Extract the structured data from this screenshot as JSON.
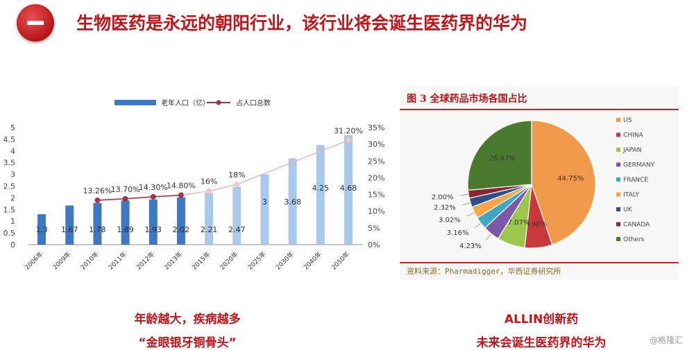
{
  "slide": {
    "title": "生物医药是永远的朝阳行业，该行业将会诞生医药界的华为",
    "badge_icon": "minus-icon",
    "accent": "#c0141b"
  },
  "left_caption": {
    "line1": "年龄越大，疾病越多",
    "line2": "“金眼银牙铜骨头”"
  },
  "right_caption": {
    "line1": "ALLIN创新药",
    "line2": "未来会诞生医药界的华为"
  },
  "right_panel": {
    "title": "图 3 全球药品市场各国占比",
    "source": "资料来源：Pharmadigger，华西证券研究所"
  },
  "watermark": "@格隆汇",
  "chart_data": [
    {
      "type": "bar",
      "legend": [
        "老年人口（亿）",
        "占人口总数"
      ],
      "categories": [
        "2006年",
        "2009年",
        "2010年",
        "2011年",
        "2012年",
        "2013年",
        "2015年",
        "2020年",
        "2025年",
        "2030年",
        "2040年",
        "2050年"
      ],
      "series": [
        {
          "name": "老年人口（亿）",
          "values": [
            1.3,
            1.67,
            1.78,
            1.89,
            1.93,
            2.02,
            2.21,
            2.47,
            3,
            3.68,
            4.25,
            4.68
          ],
          "labels": [
            "1.3",
            "1.67",
            "1.78",
            "1.89",
            "1.93",
            "2.02",
            "2.21",
            "2.47",
            "3",
            "3.68",
            "4.25",
            "4.68"
          ]
        },
        {
          "name": "占人口总数",
          "values": [
            null,
            null,
            13.26,
            13.7,
            14.3,
            14.8,
            16,
            18,
            null,
            null,
            null,
            31.2
          ],
          "labels": [
            "",
            "",
            "13.26%",
            "13.70%",
            "14.30%",
            "14.80%",
            "16%",
            "18%",
            "",
            "",
            "",
            "31.20%"
          ]
        }
      ],
      "y_ticks": [
        "0",
        "0.5",
        "1",
        "1.5",
        "2",
        "2.5",
        "3",
        "3.5",
        "4",
        "4.5",
        "5"
      ],
      "y2_ticks": [
        "0%",
        "5%",
        "10%",
        "15%",
        "20%",
        "25%",
        "30%",
        "35%"
      ],
      "ylim": [
        0,
        5
      ],
      "y2lim": [
        0,
        35
      ],
      "colors": {
        "bar_dark": "#3e78c2",
        "bar_light": "#a9c8ea",
        "line": "#a23446"
      }
    },
    {
      "type": "pie",
      "categories": [
        "US",
        "CHINA",
        "JAPAN",
        "GERMANY",
        "FRANCE",
        "ITALY",
        "UK",
        "CANADA",
        "Others"
      ],
      "values": [
        44.75,
        6.98,
        7.07,
        4.23,
        3.16,
        3.02,
        2.32,
        2.0,
        26.47
      ],
      "labels": [
        "44.75%",
        "6.98%",
        "7.07%",
        "4.23%",
        "3.16%",
        "3.02%",
        "2.32%",
        "2.00%",
        "26.47%"
      ],
      "colors": [
        "#f0994a",
        "#c8393c",
        "#9dc74c",
        "#7a5aa8",
        "#3fa7c6",
        "#f7a64a",
        "#2e4f85",
        "#8a2633",
        "#4a7a30"
      ]
    }
  ]
}
